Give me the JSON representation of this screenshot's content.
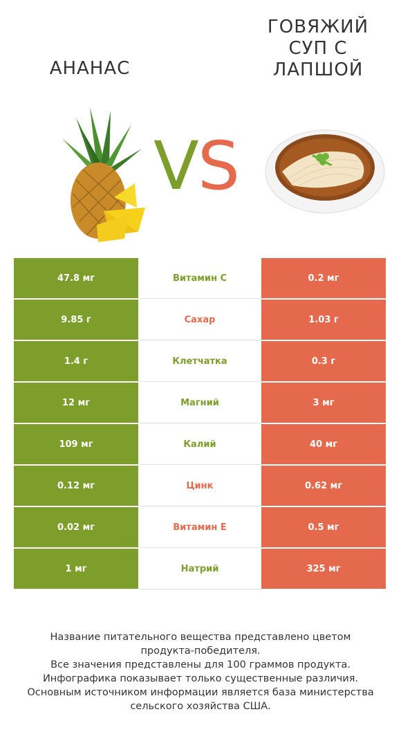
{
  "header": {
    "left_title": "АНАНАС",
    "right_title_lines": [
      "ГОВЯЖИЙ",
      "СУП С",
      "ЛАПШОЙ"
    ],
    "vs_v": "V",
    "vs_s": "S"
  },
  "colors": {
    "winner_left": "#7d9e2b",
    "winner_right": "#e56a4d"
  },
  "rows": [
    {
      "left": "47.8 мг",
      "nutrient": "Витамин C",
      "right": "0.2 мг",
      "winner": "left"
    },
    {
      "left": "9.85 г",
      "nutrient": "Сахар",
      "right": "1.03 г",
      "winner": "right"
    },
    {
      "left": "1.4 г",
      "nutrient": "Клетчатка",
      "right": "0.3 г",
      "winner": "left"
    },
    {
      "left": "12 мг",
      "nutrient": "Магний",
      "right": "3 мг",
      "winner": "left"
    },
    {
      "left": "109 мг",
      "nutrient": "Калий",
      "right": "40 мг",
      "winner": "left"
    },
    {
      "left": "0.12 мг",
      "nutrient": "Цинк",
      "right": "0.62 мг",
      "winner": "right"
    },
    {
      "left": "0.02 мг",
      "nutrient": "Витамин E",
      "right": "0.5 мг",
      "winner": "right"
    },
    {
      "left": "1 мг",
      "nutrient": "Натрий",
      "right": "325 мг",
      "winner": "left"
    }
  ],
  "footer_lines": [
    "Название питательного вещества представлено цветом",
    "продукта-победителя.",
    "Все значения представлены для 100 граммов продукта.",
    "Инфографика показывает только существенные различия.",
    "Основным источником информации является база министерства",
    "сельского хозяйства США."
  ]
}
